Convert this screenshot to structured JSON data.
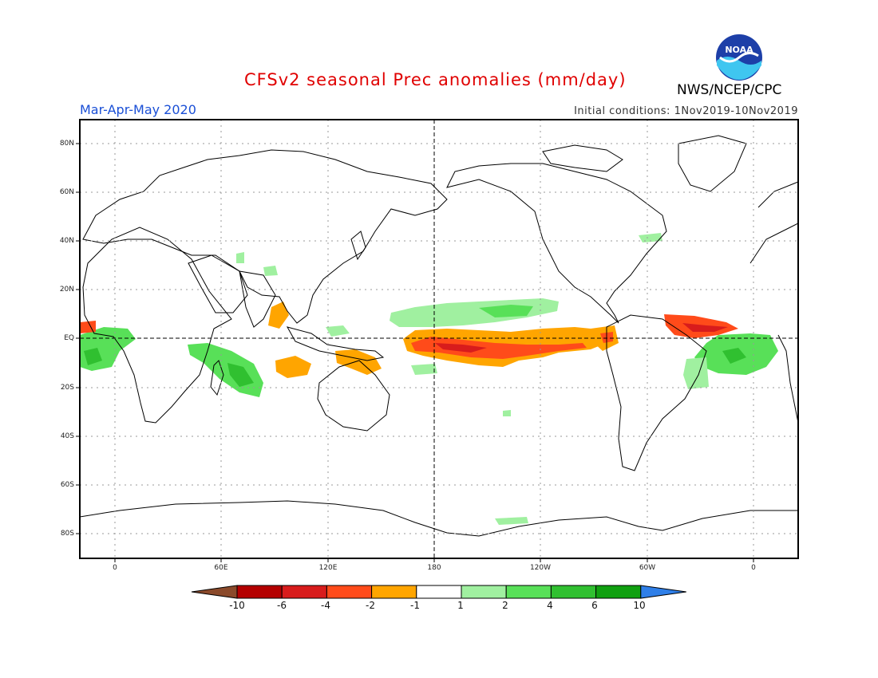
{
  "title": "CFSv2 seasonal Prec anomalies (mm/day)",
  "organization": "NWS/NCEP/CPC",
  "logo_text": "NOAA",
  "season": "Mar-Apr-May 2020",
  "initial_conditions": "Initial conditions: 1Nov2019-10Nov2019",
  "lat_labels": [
    "80N",
    "60N",
    "40N",
    "20N",
    "EQ",
    "20S",
    "40S",
    "60S",
    "80S"
  ],
  "lon_labels": [
    "0",
    "60E",
    "120E",
    "180",
    "120W",
    "60W",
    "0"
  ],
  "colorbar": {
    "labels": [
      "-10",
      "-6",
      "-4",
      "-2",
      "-1",
      "1",
      "2",
      "4",
      "6",
      "10"
    ],
    "colors": [
      "#8b4a2b",
      "#b40000",
      "#d81c1c",
      "#ff4b1a",
      "#ffa500",
      "#ffffff",
      "#a0f0a0",
      "#58e058",
      "#30c030",
      "#10a010",
      "#2f7fe8"
    ]
  },
  "anomaly_colors": {
    "dry_light": "#ffa500",
    "dry_mid": "#ff4b1a",
    "dry_strong": "#d81c1c",
    "wet_light": "#a0f0a0",
    "wet_mid": "#58e058",
    "wet_strong": "#30c030"
  }
}
